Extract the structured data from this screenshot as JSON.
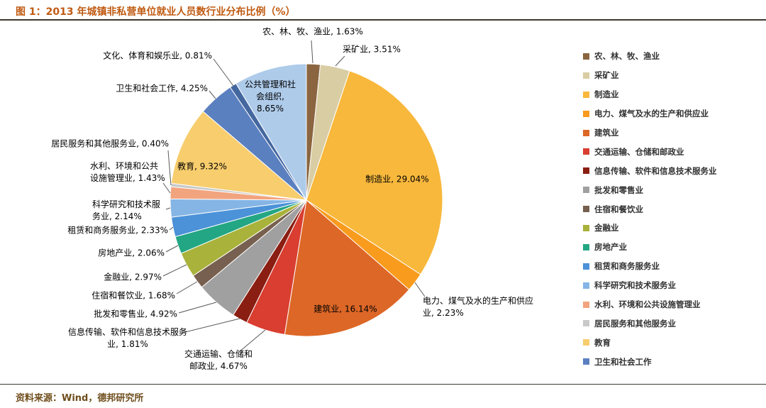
{
  "title": "图 1：2013 年城镇非私营单位就业人员数行业分布比例（%）",
  "source": "资料来源：Wind，德邦研究所",
  "colors": {
    "title_accent": "#C05A11",
    "source_text": "#6F4E1D",
    "divider": "#3E382F",
    "leader_line": "#595959"
  },
  "chart_data": {
    "type": "pie",
    "title": "2013 年城镇非私营单位就业人员数行业分布比例（%）",
    "unit": "%",
    "direction": "clockwise",
    "start_angle": "top",
    "legend_position": "right",
    "legend_visible_count": 17,
    "slices": [
      {
        "label": "农、林、牧、渔业",
        "value": 1.63,
        "color": "#8A6540"
      },
      {
        "label": "采矿业",
        "value": 3.51,
        "color": "#D9CDA4"
      },
      {
        "label": "制造业",
        "value": 29.04,
        "color": "#F8B83C"
      },
      {
        "label": "电力、煤气及水的生产和供应业",
        "value": 2.23,
        "color": "#F99B1C"
      },
      {
        "label": "建筑业",
        "value": 16.14,
        "color": "#DD6727"
      },
      {
        "label": "交通运输、仓储和邮政业",
        "value": 4.67,
        "color": "#D93E30"
      },
      {
        "label": "信息传输、软件和信息技术服务业",
        "value": 1.81,
        "color": "#8A1E12"
      },
      {
        "label": "批发和零售业",
        "value": 4.92,
        "color": "#A0A0A0"
      },
      {
        "label": "住宿和餐饮业",
        "value": 1.68,
        "color": "#77604F"
      },
      {
        "label": "金融业",
        "value": 2.97,
        "color": "#A9B23A"
      },
      {
        "label": "房地产业",
        "value": 2.06,
        "color": "#23A683"
      },
      {
        "label": "租赁和商务服务业",
        "value": 2.33,
        "color": "#4B92D8"
      },
      {
        "label": "科学研究和技术服务业",
        "value": 2.14,
        "color": "#85B5E5"
      },
      {
        "label": "水利、环境和公共设施管理业",
        "value": 1.43,
        "color": "#F2A47F"
      },
      {
        "label": "居民服务和其他服务业",
        "value": 0.4,
        "color": "#C9C9C9"
      },
      {
        "label": "教育",
        "value": 9.32,
        "color": "#F7CD6D"
      },
      {
        "label": "卫生和社会工作",
        "value": 4.25,
        "color": "#5B80C0"
      },
      {
        "label": "文化、体育和娱乐业",
        "value": 0.81,
        "color": "#44679F"
      },
      {
        "label": "公共管理和社会组织",
        "value": 8.65,
        "color": "#AECBEA"
      }
    ]
  }
}
